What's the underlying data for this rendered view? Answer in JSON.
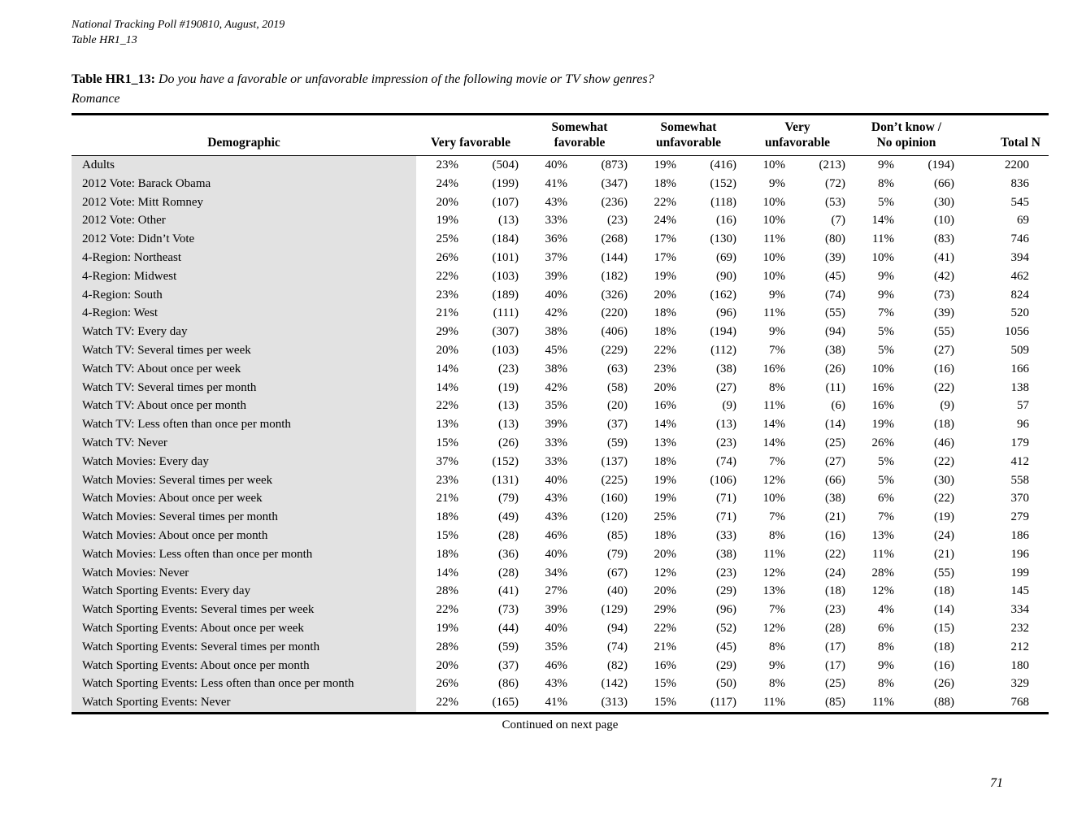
{
  "document": {
    "poll_line": "National Tracking Poll #190810, August, 2019",
    "table_line": "Table HR1_13",
    "title_label": "Table HR1_13:",
    "title_question": "Do you have a favorable or unfavorable impression of the following movie or TV show genres?",
    "title_subject": "Romance",
    "continued_note": "Continued on next page",
    "page_number": "71"
  },
  "colors": {
    "row_label_background": "#e2e2e2",
    "text": "#000000",
    "rule": "#000000"
  },
  "table": {
    "header": {
      "demographic": "Demographic",
      "groups": [
        "Very favorable",
        "Somewhat\nfavorable",
        "Somewhat\nunfavorable",
        "Very\nunfavorable",
        "Don’t know /\nNo opinion"
      ],
      "total": "Total N"
    },
    "rows": [
      {
        "label": "Adults",
        "values": [
          [
            "23%",
            "(504)"
          ],
          [
            "40%",
            "(873)"
          ],
          [
            "19%",
            "(416)"
          ],
          [
            "10%",
            "(213)"
          ],
          [
            "9%",
            "(194)"
          ]
        ],
        "total": "2200"
      },
      {
        "label": "2012 Vote: Barack Obama",
        "values": [
          [
            "24%",
            "(199)"
          ],
          [
            "41%",
            "(347)"
          ],
          [
            "18%",
            "(152)"
          ],
          [
            "9%",
            "(72)"
          ],
          [
            "8%",
            "(66)"
          ]
        ],
        "total": "836"
      },
      {
        "label": "2012 Vote: Mitt Romney",
        "values": [
          [
            "20%",
            "(107)"
          ],
          [
            "43%",
            "(236)"
          ],
          [
            "22%",
            "(118)"
          ],
          [
            "10%",
            "(53)"
          ],
          [
            "5%",
            "(30)"
          ]
        ],
        "total": "545"
      },
      {
        "label": "2012 Vote: Other",
        "values": [
          [
            "19%",
            "(13)"
          ],
          [
            "33%",
            "(23)"
          ],
          [
            "24%",
            "(16)"
          ],
          [
            "10%",
            "(7)"
          ],
          [
            "14%",
            "(10)"
          ]
        ],
        "total": "69"
      },
      {
        "label": "2012 Vote: Didn’t Vote",
        "values": [
          [
            "25%",
            "(184)"
          ],
          [
            "36%",
            "(268)"
          ],
          [
            "17%",
            "(130)"
          ],
          [
            "11%",
            "(80)"
          ],
          [
            "11%",
            "(83)"
          ]
        ],
        "total": "746"
      },
      {
        "label": "4-Region: Northeast",
        "values": [
          [
            "26%",
            "(101)"
          ],
          [
            "37%",
            "(144)"
          ],
          [
            "17%",
            "(69)"
          ],
          [
            "10%",
            "(39)"
          ],
          [
            "10%",
            "(41)"
          ]
        ],
        "total": "394"
      },
      {
        "label": "4-Region: Midwest",
        "values": [
          [
            "22%",
            "(103)"
          ],
          [
            "39%",
            "(182)"
          ],
          [
            "19%",
            "(90)"
          ],
          [
            "10%",
            "(45)"
          ],
          [
            "9%",
            "(42)"
          ]
        ],
        "total": "462"
      },
      {
        "label": "4-Region: South",
        "values": [
          [
            "23%",
            "(189)"
          ],
          [
            "40%",
            "(326)"
          ],
          [
            "20%",
            "(162)"
          ],
          [
            "9%",
            "(74)"
          ],
          [
            "9%",
            "(73)"
          ]
        ],
        "total": "824"
      },
      {
        "label": "4-Region: West",
        "values": [
          [
            "21%",
            "(111)"
          ],
          [
            "42%",
            "(220)"
          ],
          [
            "18%",
            "(96)"
          ],
          [
            "11%",
            "(55)"
          ],
          [
            "7%",
            "(39)"
          ]
        ],
        "total": "520"
      },
      {
        "label": "Watch TV: Every day",
        "values": [
          [
            "29%",
            "(307)"
          ],
          [
            "38%",
            "(406)"
          ],
          [
            "18%",
            "(194)"
          ],
          [
            "9%",
            "(94)"
          ],
          [
            "5%",
            "(55)"
          ]
        ],
        "total": "1056"
      },
      {
        "label": "Watch TV: Several times per week",
        "values": [
          [
            "20%",
            "(103)"
          ],
          [
            "45%",
            "(229)"
          ],
          [
            "22%",
            "(112)"
          ],
          [
            "7%",
            "(38)"
          ],
          [
            "5%",
            "(27)"
          ]
        ],
        "total": "509"
      },
      {
        "label": "Watch TV: About once per week",
        "values": [
          [
            "14%",
            "(23)"
          ],
          [
            "38%",
            "(63)"
          ],
          [
            "23%",
            "(38)"
          ],
          [
            "16%",
            "(26)"
          ],
          [
            "10%",
            "(16)"
          ]
        ],
        "total": "166"
      },
      {
        "label": "Watch TV: Several times per month",
        "values": [
          [
            "14%",
            "(19)"
          ],
          [
            "42%",
            "(58)"
          ],
          [
            "20%",
            "(27)"
          ],
          [
            "8%",
            "(11)"
          ],
          [
            "16%",
            "(22)"
          ]
        ],
        "total": "138"
      },
      {
        "label": "Watch TV: About once per month",
        "values": [
          [
            "22%",
            "(13)"
          ],
          [
            "35%",
            "(20)"
          ],
          [
            "16%",
            "(9)"
          ],
          [
            "11%",
            "(6)"
          ],
          [
            "16%",
            "(9)"
          ]
        ],
        "total": "57"
      },
      {
        "label": "Watch TV: Less often than once per month",
        "values": [
          [
            "13%",
            "(13)"
          ],
          [
            "39%",
            "(37)"
          ],
          [
            "14%",
            "(13)"
          ],
          [
            "14%",
            "(14)"
          ],
          [
            "19%",
            "(18)"
          ]
        ],
        "total": "96"
      },
      {
        "label": "Watch TV: Never",
        "values": [
          [
            "15%",
            "(26)"
          ],
          [
            "33%",
            "(59)"
          ],
          [
            "13%",
            "(23)"
          ],
          [
            "14%",
            "(25)"
          ],
          [
            "26%",
            "(46)"
          ]
        ],
        "total": "179"
      },
      {
        "label": "Watch Movies: Every day",
        "values": [
          [
            "37%",
            "(152)"
          ],
          [
            "33%",
            "(137)"
          ],
          [
            "18%",
            "(74)"
          ],
          [
            "7%",
            "(27)"
          ],
          [
            "5%",
            "(22)"
          ]
        ],
        "total": "412"
      },
      {
        "label": "Watch Movies: Several times per week",
        "values": [
          [
            "23%",
            "(131)"
          ],
          [
            "40%",
            "(225)"
          ],
          [
            "19%",
            "(106)"
          ],
          [
            "12%",
            "(66)"
          ],
          [
            "5%",
            "(30)"
          ]
        ],
        "total": "558"
      },
      {
        "label": "Watch Movies: About once per week",
        "values": [
          [
            "21%",
            "(79)"
          ],
          [
            "43%",
            "(160)"
          ],
          [
            "19%",
            "(71)"
          ],
          [
            "10%",
            "(38)"
          ],
          [
            "6%",
            "(22)"
          ]
        ],
        "total": "370"
      },
      {
        "label": "Watch Movies: Several times per month",
        "values": [
          [
            "18%",
            "(49)"
          ],
          [
            "43%",
            "(120)"
          ],
          [
            "25%",
            "(71)"
          ],
          [
            "7%",
            "(21)"
          ],
          [
            "7%",
            "(19)"
          ]
        ],
        "total": "279"
      },
      {
        "label": "Watch Movies: About once per month",
        "values": [
          [
            "15%",
            "(28)"
          ],
          [
            "46%",
            "(85)"
          ],
          [
            "18%",
            "(33)"
          ],
          [
            "8%",
            "(16)"
          ],
          [
            "13%",
            "(24)"
          ]
        ],
        "total": "186"
      },
      {
        "label": "Watch Movies: Less often than once per month",
        "values": [
          [
            "18%",
            "(36)"
          ],
          [
            "40%",
            "(79)"
          ],
          [
            "20%",
            "(38)"
          ],
          [
            "11%",
            "(22)"
          ],
          [
            "11%",
            "(21)"
          ]
        ],
        "total": "196"
      },
      {
        "label": "Watch Movies: Never",
        "values": [
          [
            "14%",
            "(28)"
          ],
          [
            "34%",
            "(67)"
          ],
          [
            "12%",
            "(23)"
          ],
          [
            "12%",
            "(24)"
          ],
          [
            "28%",
            "(55)"
          ]
        ],
        "total": "199"
      },
      {
        "label": "Watch Sporting Events: Every day",
        "values": [
          [
            "28%",
            "(41)"
          ],
          [
            "27%",
            "(40)"
          ],
          [
            "20%",
            "(29)"
          ],
          [
            "13%",
            "(18)"
          ],
          [
            "12%",
            "(18)"
          ]
        ],
        "total": "145"
      },
      {
        "label": "Watch Sporting Events: Several times per week",
        "values": [
          [
            "22%",
            "(73)"
          ],
          [
            "39%",
            "(129)"
          ],
          [
            "29%",
            "(96)"
          ],
          [
            "7%",
            "(23)"
          ],
          [
            "4%",
            "(14)"
          ]
        ],
        "total": "334"
      },
      {
        "label": "Watch Sporting Events: About once per week",
        "values": [
          [
            "19%",
            "(44)"
          ],
          [
            "40%",
            "(94)"
          ],
          [
            "22%",
            "(52)"
          ],
          [
            "12%",
            "(28)"
          ],
          [
            "6%",
            "(15)"
          ]
        ],
        "total": "232"
      },
      {
        "label": "Watch Sporting Events: Several times per month",
        "values": [
          [
            "28%",
            "(59)"
          ],
          [
            "35%",
            "(74)"
          ],
          [
            "21%",
            "(45)"
          ],
          [
            "8%",
            "(17)"
          ],
          [
            "8%",
            "(18)"
          ]
        ],
        "total": "212"
      },
      {
        "label": "Watch Sporting Events: About once per month",
        "values": [
          [
            "20%",
            "(37)"
          ],
          [
            "46%",
            "(82)"
          ],
          [
            "16%",
            "(29)"
          ],
          [
            "9%",
            "(17)"
          ],
          [
            "9%",
            "(16)"
          ]
        ],
        "total": "180"
      },
      {
        "label": "Watch Sporting Events: Less often than once per month",
        "values": [
          [
            "26%",
            "(86)"
          ],
          [
            "43%",
            "(142)"
          ],
          [
            "15%",
            "(50)"
          ],
          [
            "8%",
            "(25)"
          ],
          [
            "8%",
            "(26)"
          ]
        ],
        "total": "329"
      },
      {
        "label": "Watch Sporting Events: Never",
        "values": [
          [
            "22%",
            "(165)"
          ],
          [
            "41%",
            "(313)"
          ],
          [
            "15%",
            "(117)"
          ],
          [
            "11%",
            "(85)"
          ],
          [
            "11%",
            "(88)"
          ]
        ],
        "total": "768"
      }
    ]
  }
}
